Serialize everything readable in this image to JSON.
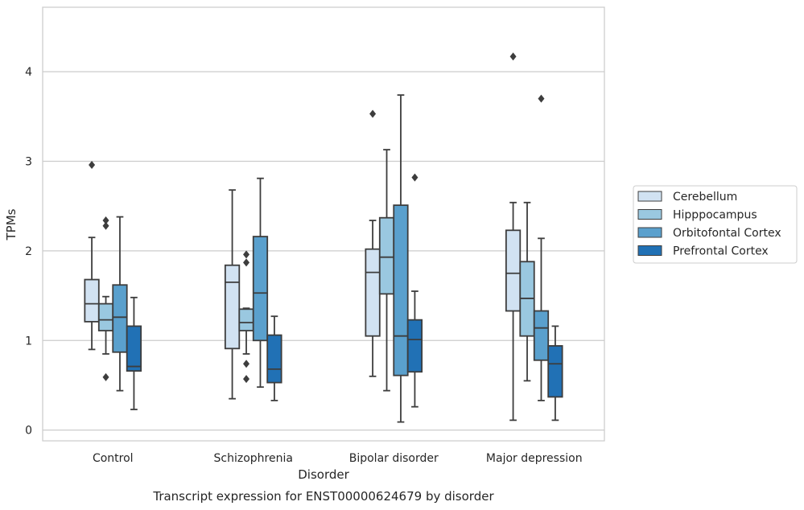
{
  "chart_data": {
    "type": "box",
    "caption": "Transcript expression for ENST00000624679 by disorder",
    "xlabel": "Disorder",
    "ylabel": "TPMs",
    "ylim": [
      -0.12,
      4.72
    ],
    "yticks": [
      0,
      1,
      2,
      3,
      4
    ],
    "grid": "horizontal",
    "legend_position": "right",
    "categories": [
      "Control",
      "Schizophrenia",
      "Bipolar disorder",
      "Major depression"
    ],
    "series": [
      {
        "name": "Cerebellum",
        "color": "#d1e2f2",
        "boxes": [
          {
            "whislo": 0.9,
            "q1": 1.21,
            "med": 1.41,
            "q3": 1.68,
            "whishi": 2.15,
            "fliers": [
              2.96
            ]
          },
          {
            "whislo": 0.35,
            "q1": 0.91,
            "med": 1.65,
            "q3": 1.84,
            "whishi": 2.68,
            "fliers": []
          },
          {
            "whislo": 0.6,
            "q1": 1.05,
            "med": 1.76,
            "q3": 2.02,
            "whishi": 2.34,
            "fliers": [
              3.53
            ]
          },
          {
            "whislo": 0.11,
            "q1": 1.33,
            "med": 1.75,
            "q3": 2.23,
            "whishi": 2.54,
            "fliers": [
              4.17
            ]
          }
        ]
      },
      {
        "name": "Hipppocampus",
        "color": "#9ac8e0",
        "boxes": [
          {
            "whislo": 0.85,
            "q1": 1.11,
            "med": 1.23,
            "q3": 1.41,
            "whishi": 1.49,
            "fliers": [
              0.59,
              2.28,
              2.34
            ]
          },
          {
            "whislo": 0.85,
            "q1": 1.11,
            "med": 1.2,
            "q3": 1.35,
            "whishi": 1.36,
            "fliers": [
              0.57,
              0.74,
              1.87,
              1.96
            ]
          },
          {
            "whislo": 0.44,
            "q1": 1.52,
            "med": 1.93,
            "q3": 2.37,
            "whishi": 3.13,
            "fliers": []
          },
          {
            "whislo": 0.55,
            "q1": 1.05,
            "med": 1.47,
            "q3": 1.88,
            "whishi": 2.54,
            "fliers": []
          }
        ]
      },
      {
        "name": "Orbitofontal Cortex",
        "color": "#5aa0cd",
        "boxes": [
          {
            "whislo": 0.44,
            "q1": 0.87,
            "med": 1.26,
            "q3": 1.62,
            "whishi": 2.38,
            "fliers": []
          },
          {
            "whislo": 0.48,
            "q1": 1.0,
            "med": 1.53,
            "q3": 2.16,
            "whishi": 2.81,
            "fliers": []
          },
          {
            "whislo": 0.09,
            "q1": 0.61,
            "med": 1.05,
            "q3": 2.51,
            "whishi": 3.74,
            "fliers": []
          },
          {
            "whislo": 0.33,
            "q1": 0.78,
            "med": 1.14,
            "q3": 1.33,
            "whishi": 2.14,
            "fliers": [
              3.7
            ]
          }
        ]
      },
      {
        "name": "Prefrontal Cortex",
        "color": "#2171b5",
        "boxes": [
          {
            "whislo": 0.23,
            "q1": 0.66,
            "med": 0.71,
            "q3": 1.16,
            "whishi": 1.48,
            "fliers": []
          },
          {
            "whislo": 0.33,
            "q1": 0.53,
            "med": 0.68,
            "q3": 1.06,
            "whishi": 1.27,
            "fliers": []
          },
          {
            "whislo": 0.26,
            "q1": 0.65,
            "med": 1.01,
            "q3": 1.23,
            "whishi": 1.55,
            "fliers": [
              2.82
            ]
          },
          {
            "whislo": 0.11,
            "q1": 0.37,
            "med": 0.74,
            "q3": 0.94,
            "whishi": 1.16,
            "fliers": []
          }
        ]
      }
    ]
  }
}
